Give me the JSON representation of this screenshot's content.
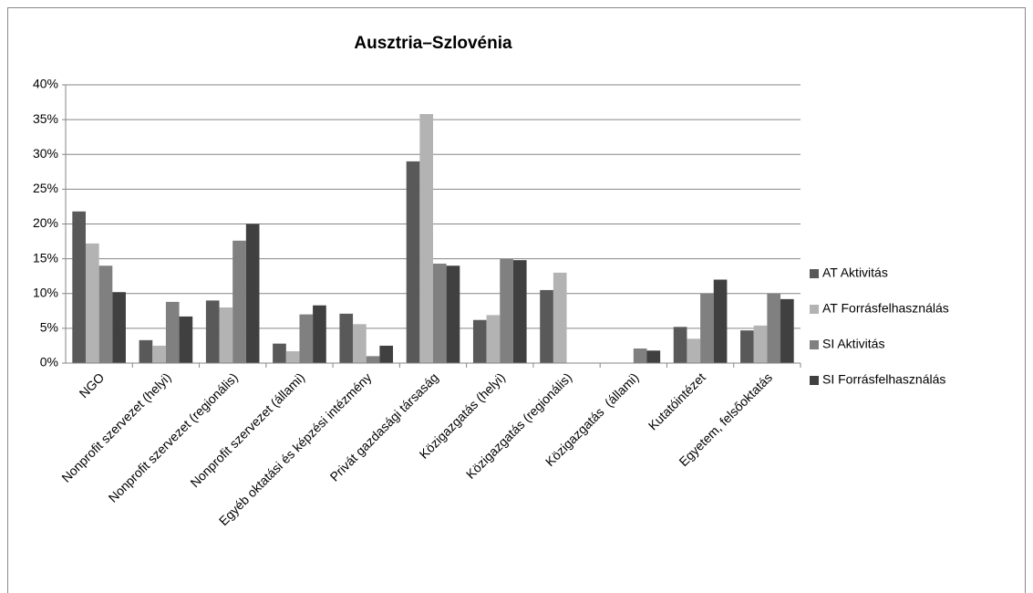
{
  "chart_data": {
    "type": "bar",
    "title": "Ausztria–Szlovénia",
    "categories": [
      "NGO",
      "Nonprofit szervezet (helyi)",
      "Nonprofit szervezet (regionális)",
      "Nonprofit szervezet (állami)",
      "Egyéb oktatási és képzési intézmény",
      "Privát gazdasági társaság",
      "Közigazgatás (helyi)",
      "Közigazgatás (regionális)",
      "Közigazgatás  (állami)",
      "Kutatóintézet",
      "Egyetem, felsőoktatás"
    ],
    "series": [
      {
        "name": "AT Aktivitás",
        "color": "#595959",
        "values": [
          21.8,
          3.3,
          9.0,
          2.8,
          7.1,
          29.0,
          6.2,
          10.5,
          0,
          5.2,
          4.7
        ]
      },
      {
        "name": "AT Forrásfelhasználás",
        "color": "#b3b3b3",
        "values": [
          17.2,
          2.5,
          8.0,
          1.7,
          5.6,
          35.8,
          6.9,
          13.0,
          0,
          3.5,
          5.4
        ]
      },
      {
        "name": "SI Aktivitás",
        "color": "#808080",
        "values": [
          14.0,
          8.8,
          17.6,
          7.0,
          1.0,
          14.3,
          15.0,
          0,
          2.1,
          10.0,
          10.0
        ]
      },
      {
        "name": "SI Forrásfelhasználás",
        "color": "#404040",
        "values": [
          10.2,
          6.7,
          20.0,
          8.3,
          2.5,
          14.0,
          14.8,
          0,
          1.8,
          12.0,
          9.2
        ]
      }
    ],
    "ylim": [
      0,
      40
    ],
    "yticks": [
      {
        "value": 0,
        "label": "0%"
      },
      {
        "value": 5,
        "label": "5%"
      },
      {
        "value": 10,
        "label": "10%"
      },
      {
        "value": 15,
        "label": "15%"
      },
      {
        "value": 20,
        "label": "20%"
      },
      {
        "value": 25,
        "label": "25%"
      },
      {
        "value": 30,
        "label": "30%"
      },
      {
        "value": 35,
        "label": "35%"
      },
      {
        "value": 40,
        "label": "40%"
      }
    ],
    "grid": true,
    "legend": "right"
  }
}
